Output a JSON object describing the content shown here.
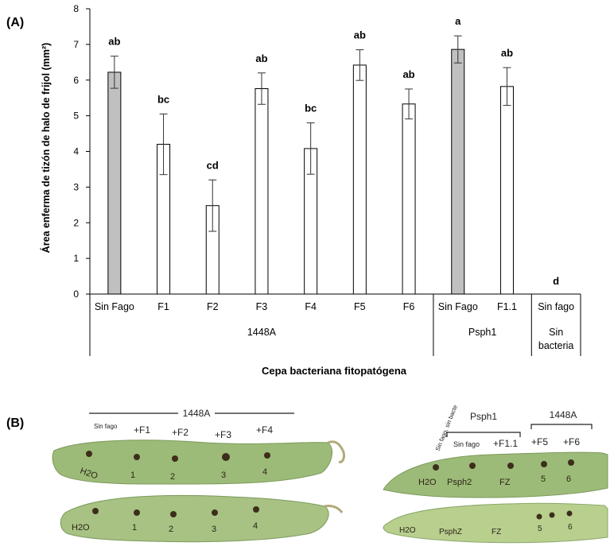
{
  "panel_a_label": "(A)",
  "panel_b_label": "(B)",
  "chart_data": {
    "type": "bar",
    "ylabel": "Área enferma de tizón de halo de frijol  (mm²)",
    "xlabel": "Cepa bacteriana fitopatógena",
    "ylim": [
      0,
      8
    ],
    "yticks": [
      "0",
      "1",
      "2",
      "3",
      "4",
      "5",
      "6",
      "7",
      "8"
    ],
    "categories": [
      "Sin Fago",
      "F1",
      "F2",
      "F3",
      "F4",
      "F5",
      "F6",
      "Sin Fago",
      "F1.1",
      "Sin fago"
    ],
    "groups": [
      {
        "label": "1448A",
        "span": [
          0,
          6
        ]
      },
      {
        "label": "Psph1",
        "span": [
          7,
          8
        ]
      },
      {
        "label": "Sin bacteria",
        "lines": [
          "Sin",
          "bacteria"
        ],
        "span": [
          9,
          9
        ]
      }
    ],
    "values": [
      6.22,
      4.2,
      2.48,
      5.76,
      4.08,
      6.42,
      5.33,
      6.86,
      5.82,
      0
    ],
    "errors": [
      0.45,
      0.85,
      0.72,
      0.44,
      0.72,
      0.43,
      0.42,
      0.38,
      0.53,
      0
    ],
    "letters": [
      "ab",
      "bc",
      "cd",
      "ab",
      "bc",
      "ab",
      "ab",
      "a",
      "ab",
      "d"
    ],
    "fills": [
      "#c0c0c0",
      "#ffffff",
      "#ffffff",
      "#ffffff",
      "#ffffff",
      "#ffffff",
      "#ffffff",
      "#c0c0c0",
      "#ffffff",
      "#ffffff"
    ]
  },
  "photos": {
    "left": {
      "group_label": "1448A",
      "labels": [
        "Sin fago",
        "+F1",
        "+F2",
        "+F3",
        "+F4"
      ],
      "pod_top_marks": [
        "H2O",
        "1",
        "2",
        "3",
        "4"
      ],
      "pod_bottom_marks": [
        "H2O",
        "1",
        "2",
        "3",
        "4"
      ]
    },
    "right": {
      "side_label": "Sin fago, sin bacteria",
      "group_label_1": "Psph1",
      "group_label_2": "1448A",
      "labels": [
        "Sin fago",
        "+F1.1",
        "+F5",
        "+F6"
      ],
      "pod_top_marks": [
        "H2O",
        "Psph2",
        "FZ",
        "5",
        "6"
      ],
      "pod_bottom_marks": [
        "H2O",
        "PsphZ",
        "FZ",
        "5",
        "6"
      ]
    }
  }
}
